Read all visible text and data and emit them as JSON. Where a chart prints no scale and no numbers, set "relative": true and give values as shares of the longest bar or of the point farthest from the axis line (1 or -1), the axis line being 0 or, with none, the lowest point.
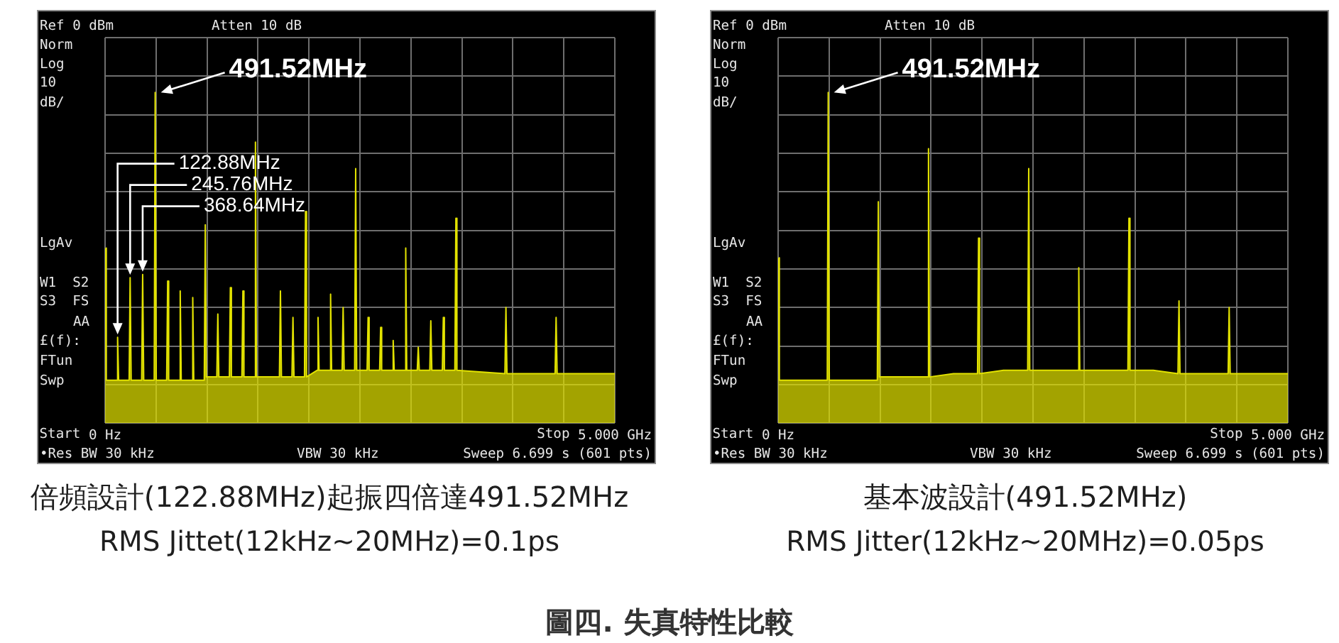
{
  "chart_data": [
    {
      "type": "area",
      "title": "倍頻設計(122.88MHz)起振四倍達491.52MHz",
      "subtitle": "RMS Jittet(12kHz~20MHz)=0.1ps",
      "relative": true,
      "color": "#e2e200",
      "x": [
        0,
        0.012,
        0.113,
        0.12288,
        0.133,
        0.236,
        0.24576,
        0.256,
        0.359,
        0.36864,
        0.379,
        0.482,
        0.49152,
        0.502,
        0.604,
        0.614,
        0.624,
        0.727,
        0.737,
        0.747,
        0.85,
        0.86,
        0.87,
        0.973,
        0.983,
        0.993,
        1.096,
        1.106,
        1.116,
        1.219,
        1.229,
        1.239,
        1.342,
        1.352,
        1.362,
        1.465,
        1.475,
        1.485,
        1.71,
        1.72,
        1.73,
        1.833,
        1.843,
        1.853,
        1.956,
        1.966,
        1.976,
        2.079,
        2.089,
        2.099,
        2.202,
        2.212,
        2.222,
        2.325,
        2.335,
        2.345,
        2.448,
        2.458,
        2.468,
        2.57,
        2.58,
        2.59,
        2.693,
        2.703,
        2.713,
        2.816,
        2.826,
        2.836,
        2.939,
        2.949,
        2.959,
        3.062,
        3.072,
        3.082,
        3.185,
        3.195,
        3.205,
        3.308,
        3.318,
        3.328,
        3.431,
        3.441,
        3.451,
        3.922,
        3.932,
        3.942,
        4.414,
        4.424,
        4.434,
        5
      ],
      "values": [
        0.53,
        0.13,
        0.13,
        0.26,
        0.13,
        0.13,
        0.44,
        0.13,
        0.13,
        0.45,
        0.13,
        0.13,
        1,
        0.13,
        0.13,
        0.43,
        0.13,
        0.13,
        0.4,
        0.13,
        0.13,
        0.38,
        0.13,
        0.13,
        0.6,
        0.14,
        0.14,
        0.33,
        0.14,
        0.14,
        0.41,
        0.14,
        0.14,
        0.4,
        0.14,
        0.14,
        0.85,
        0.14,
        0.14,
        0.4,
        0.14,
        0.14,
        0.32,
        0.14,
        0.14,
        0.64,
        0.14,
        0.16,
        0.32,
        0.16,
        0.16,
        0.39,
        0.16,
        0.16,
        0.35,
        0.16,
        0.16,
        0.77,
        0.16,
        0.16,
        0.32,
        0.16,
        0.16,
        0.29,
        0.16,
        0.16,
        0.25,
        0.16,
        0.16,
        0.53,
        0.16,
        0.16,
        0.23,
        0.16,
        0.16,
        0.31,
        0.16,
        0.16,
        0.32,
        0.16,
        0.16,
        0.62,
        0.16,
        0.15,
        0.35,
        0.15,
        0.15,
        0.32,
        0.15,
        0.15
      ],
      "xlim": [
        0,
        5
      ],
      "xticks": [
        {
          "value": 0,
          "label": "0 Hz"
        },
        {
          "value": 0.5,
          "label": null
        },
        {
          "value": 1,
          "label": null
        },
        {
          "value": 1.5,
          "label": null
        },
        {
          "value": 2,
          "label": null
        },
        {
          "value": 2.5,
          "label": null
        },
        {
          "value": 3,
          "label": null
        },
        {
          "value": 3.5,
          "label": null
        },
        {
          "value": 4,
          "label": null
        },
        {
          "value": 4.5,
          "label": null
        },
        {
          "value": 5,
          "label": "5.000 GHz"
        }
      ],
      "grid": true,
      "annotations": [
        "Ref 0 dBm",
        "Atten 10 dB",
        "Norm",
        "Log",
        "10",
        "dB/",
        "LgAv",
        "W1  S2",
        "S3  FS",
        "AA",
        "£(f):",
        "FTun",
        "Swp",
        "•Res BW 30 kHz",
        "VBW 30 kHz",
        "Sweep 6.699 s (601 pts)",
        "Start",
        "Stop",
        {
          "text": "491.52MHz",
          "x": 0.49152,
          "y": 1
        },
        {
          "text": "122.88MHz",
          "x": 0.12288,
          "y": 0.26
        },
        {
          "text": "245.76MHz",
          "x": 0.24576,
          "y": 0.44
        },
        {
          "text": "368.64MHz",
          "x": 0.36864,
          "y": 0.45
        }
      ]
    },
    {
      "type": "area",
      "title": "基本波設計(491.52MHz)",
      "subtitle": "RMS Jitter(12kHz~20MHz)=0.05ps",
      "relative": true,
      "color": "#e2e200",
      "x": [
        0,
        0.012,
        0.25,
        0.482,
        0.49152,
        0.502,
        0.74,
        0.973,
        0.983,
        0.993,
        1.23,
        1.465,
        1.475,
        1.485,
        1.72,
        1.956,
        1.966,
        1.976,
        2.21,
        2.448,
        2.458,
        2.468,
        2.7,
        2.939,
        2.949,
        2.959,
        3.19,
        3.431,
        3.441,
        3.451,
        3.68,
        3.922,
        3.932,
        3.942,
        4.17,
        4.414,
        4.424,
        4.434,
        4.66,
        5
      ],
      "values": [
        0.5,
        0.13,
        0.13,
        0.13,
        1,
        0.13,
        0.13,
        0.13,
        0.67,
        0.14,
        0.14,
        0.14,
        0.83,
        0.14,
        0.15,
        0.15,
        0.56,
        0.15,
        0.16,
        0.16,
        0.77,
        0.16,
        0.16,
        0.16,
        0.47,
        0.16,
        0.16,
        0.16,
        0.62,
        0.16,
        0.16,
        0.15,
        0.37,
        0.15,
        0.15,
        0.15,
        0.35,
        0.15,
        0.15,
        0.15
      ],
      "xlim": [
        0,
        5
      ],
      "xticks": [
        {
          "value": 0,
          "label": "0 Hz"
        },
        {
          "value": 0.5,
          "label": null
        },
        {
          "value": 1,
          "label": null
        },
        {
          "value": 1.5,
          "label": null
        },
        {
          "value": 2,
          "label": null
        },
        {
          "value": 2.5,
          "label": null
        },
        {
          "value": 3,
          "label": null
        },
        {
          "value": 3.5,
          "label": null
        },
        {
          "value": 4,
          "label": null
        },
        {
          "value": 4.5,
          "label": null
        },
        {
          "value": 5,
          "label": "5.000 GHz"
        }
      ],
      "grid": true,
      "annotations": [
        "Ref 0 dBm",
        "Atten 10 dB",
        "Norm",
        "Log",
        "10",
        "dB/",
        "LgAv",
        "W1  S2",
        "S3  FS",
        "AA",
        "£(f):",
        "FTun",
        "Swp",
        "•Res BW 30 kHz",
        "VBW 30 kHz",
        "Sweep 6.699 s (601 pts)",
        "Start",
        "Stop",
        {
          "text": "491.52MHz",
          "x": 0.49152,
          "y": 1
        }
      ]
    },
    {
      "type": "other",
      "title": "圖四. 失真特性比較"
    }
  ]
}
